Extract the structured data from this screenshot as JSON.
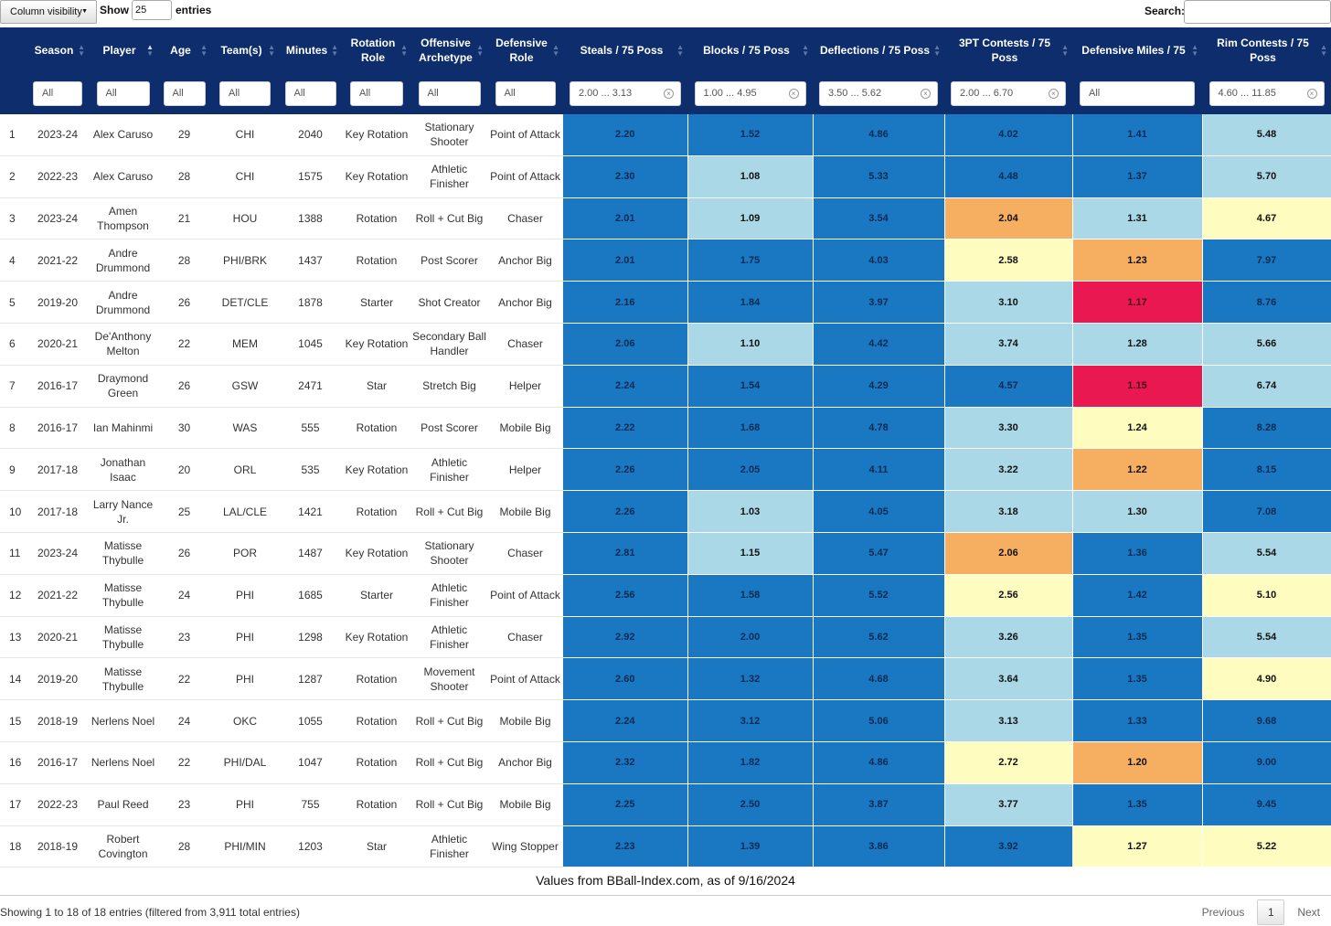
{
  "toolbar": {
    "column_visibility": "Column visibility",
    "show_label": "Show",
    "show_value": "25",
    "entries_label": "entries",
    "search_label": "Search:",
    "search_value": ""
  },
  "columns": [
    {
      "label": "",
      "sort": "none"
    },
    {
      "label": "Season",
      "sort": "both"
    },
    {
      "label": "Player",
      "sort": "asc"
    },
    {
      "label": "Age",
      "sort": "both"
    },
    {
      "label": "Team(s)",
      "sort": "both"
    },
    {
      "label": "Minutes",
      "sort": "both"
    },
    {
      "label": "Rotation Role",
      "sort": "both"
    },
    {
      "label": "Offensive Archetype",
      "sort": "both"
    },
    {
      "label": "Defensive Role",
      "sort": "both"
    },
    {
      "label": "Steals / 75 Poss",
      "sort": "both"
    },
    {
      "label": "Blocks / 75 Poss",
      "sort": "both"
    },
    {
      "label": "Deflections / 75 Poss",
      "sort": "both"
    },
    {
      "label": "3PT Contests / 75 Poss",
      "sort": "both"
    },
    {
      "label": "Defensive Miles / 75",
      "sort": "both"
    },
    {
      "label": "Rim Contests / 75 Poss",
      "sort": "both"
    }
  ],
  "filters": [
    {
      "value": "",
      "clear": false
    },
    {
      "value": "All",
      "clear": false
    },
    {
      "value": "All",
      "clear": false
    },
    {
      "value": "All",
      "clear": false
    },
    {
      "value": "All",
      "clear": false
    },
    {
      "value": "All",
      "clear": false
    },
    {
      "value": "All",
      "clear": false
    },
    {
      "value": "All",
      "clear": false
    },
    {
      "value": "All",
      "clear": false
    },
    {
      "value": "2.00 ... 3.13",
      "clear": true
    },
    {
      "value": "1.00 ... 4.95",
      "clear": true
    },
    {
      "value": "3.50 ... 5.62",
      "clear": true
    },
    {
      "value": "2.00 ... 6.70",
      "clear": true
    },
    {
      "value": "All",
      "clear": false
    },
    {
      "value": "4.60 ... 11.85",
      "clear": true
    }
  ],
  "colors": {
    "header_bg": "#0d2d6c",
    "dark_blue": "#1a78c2",
    "light_blue": "#aad8e6",
    "yellow": "#fefcbf",
    "orange": "#f6ae61",
    "red": "#e91851"
  },
  "rows": [
    {
      "n": "1",
      "season": "2023-24",
      "player": "Alex Caruso",
      "age": "29",
      "team": "CHI",
      "minutes": "2040",
      "rotation": "Key Rotation",
      "offense": "Stationary Shooter",
      "defense": "Point of Attack",
      "metrics": [
        {
          "v": "2.20",
          "c": "dark"
        },
        {
          "v": "1.52",
          "c": "dark"
        },
        {
          "v": "4.86",
          "c": "dark"
        },
        {
          "v": "4.02",
          "c": "dark"
        },
        {
          "v": "1.41",
          "c": "dark"
        },
        {
          "v": "5.48",
          "c": "light"
        }
      ]
    },
    {
      "n": "2",
      "season": "2022-23",
      "player": "Alex Caruso",
      "age": "28",
      "team": "CHI",
      "minutes": "1575",
      "rotation": "Key Rotation",
      "offense": "Athletic Finisher",
      "defense": "Point of Attack",
      "metrics": [
        {
          "v": "2.30",
          "c": "dark"
        },
        {
          "v": "1.08",
          "c": "light"
        },
        {
          "v": "5.33",
          "c": "dark"
        },
        {
          "v": "4.48",
          "c": "dark"
        },
        {
          "v": "1.37",
          "c": "dark"
        },
        {
          "v": "5.70",
          "c": "light"
        }
      ]
    },
    {
      "n": "3",
      "season": "2023-24",
      "player": "Amen Thompson",
      "age": "21",
      "team": "HOU",
      "minutes": "1388",
      "rotation": "Rotation",
      "offense": "Roll + Cut Big",
      "defense": "Chaser",
      "metrics": [
        {
          "v": "2.01",
          "c": "dark"
        },
        {
          "v": "1.09",
          "c": "light"
        },
        {
          "v": "3.54",
          "c": "dark"
        },
        {
          "v": "2.04",
          "c": "orange"
        },
        {
          "v": "1.31",
          "c": "light"
        },
        {
          "v": "4.67",
          "c": "yellow"
        }
      ]
    },
    {
      "n": "4",
      "season": "2021-22",
      "player": "Andre Drummond",
      "age": "28",
      "team": "PHI/BRK",
      "minutes": "1437",
      "rotation": "Rotation",
      "offense": "Post Scorer",
      "defense": "Anchor Big",
      "metrics": [
        {
          "v": "2.01",
          "c": "dark"
        },
        {
          "v": "1.75",
          "c": "dark"
        },
        {
          "v": "4.03",
          "c": "dark"
        },
        {
          "v": "2.58",
          "c": "yellow"
        },
        {
          "v": "1.23",
          "c": "orange"
        },
        {
          "v": "7.97",
          "c": "dark"
        }
      ]
    },
    {
      "n": "5",
      "season": "2019-20",
      "player": "Andre Drummond",
      "age": "26",
      "team": "DET/CLE",
      "minutes": "1878",
      "rotation": "Starter",
      "offense": "Shot Creator",
      "defense": "Anchor Big",
      "metrics": [
        {
          "v": "2.16",
          "c": "dark"
        },
        {
          "v": "1.84",
          "c": "dark"
        },
        {
          "v": "3.97",
          "c": "dark"
        },
        {
          "v": "3.10",
          "c": "light"
        },
        {
          "v": "1.17",
          "c": "red"
        },
        {
          "v": "8.76",
          "c": "dark"
        }
      ]
    },
    {
      "n": "6",
      "season": "2020-21",
      "player": "De'Anthony Melton",
      "age": "22",
      "team": "MEM",
      "minutes": "1045",
      "rotation": "Key Rotation",
      "offense": "Secondary Ball Handler",
      "defense": "Chaser",
      "metrics": [
        {
          "v": "2.06",
          "c": "dark"
        },
        {
          "v": "1.10",
          "c": "light"
        },
        {
          "v": "4.42",
          "c": "dark"
        },
        {
          "v": "3.74",
          "c": "light"
        },
        {
          "v": "1.28",
          "c": "light"
        },
        {
          "v": "5.66",
          "c": "light"
        }
      ]
    },
    {
      "n": "7",
      "season": "2016-17",
      "player": "Draymond Green",
      "age": "26",
      "team": "GSW",
      "minutes": "2471",
      "rotation": "Star",
      "offense": "Stretch Big",
      "defense": "Helper",
      "metrics": [
        {
          "v": "2.24",
          "c": "dark"
        },
        {
          "v": "1.54",
          "c": "dark"
        },
        {
          "v": "4.29",
          "c": "dark"
        },
        {
          "v": "4.57",
          "c": "dark"
        },
        {
          "v": "1.15",
          "c": "red"
        },
        {
          "v": "6.74",
          "c": "light"
        }
      ]
    },
    {
      "n": "8",
      "season": "2016-17",
      "player": "Ian Mahinmi",
      "age": "30",
      "team": "WAS",
      "minutes": "555",
      "rotation": "Rotation",
      "offense": "Post Scorer",
      "defense": "Mobile Big",
      "metrics": [
        {
          "v": "2.22",
          "c": "dark"
        },
        {
          "v": "1.68",
          "c": "dark"
        },
        {
          "v": "4.78",
          "c": "dark"
        },
        {
          "v": "3.30",
          "c": "light"
        },
        {
          "v": "1.24",
          "c": "yellow"
        },
        {
          "v": "8.28",
          "c": "dark"
        }
      ]
    },
    {
      "n": "9",
      "season": "2017-18",
      "player": "Jonathan Isaac",
      "age": "20",
      "team": "ORL",
      "minutes": "535",
      "rotation": "Key Rotation",
      "offense": "Athletic Finisher",
      "defense": "Helper",
      "metrics": [
        {
          "v": "2.26",
          "c": "dark"
        },
        {
          "v": "2.05",
          "c": "dark"
        },
        {
          "v": "4.11",
          "c": "dark"
        },
        {
          "v": "3.22",
          "c": "light"
        },
        {
          "v": "1.22",
          "c": "orange"
        },
        {
          "v": "8.15",
          "c": "dark"
        }
      ]
    },
    {
      "n": "10",
      "season": "2017-18",
      "player": "Larry Nance Jr.",
      "age": "25",
      "team": "LAL/CLE",
      "minutes": "1421",
      "rotation": "Rotation",
      "offense": "Roll + Cut Big",
      "defense": "Mobile Big",
      "metrics": [
        {
          "v": "2.26",
          "c": "dark"
        },
        {
          "v": "1.03",
          "c": "light"
        },
        {
          "v": "4.05",
          "c": "dark"
        },
        {
          "v": "3.18",
          "c": "light"
        },
        {
          "v": "1.30",
          "c": "light"
        },
        {
          "v": "7.08",
          "c": "dark"
        }
      ]
    },
    {
      "n": "11",
      "season": "2023-24",
      "player": "Matisse Thybulle",
      "age": "26",
      "team": "POR",
      "minutes": "1487",
      "rotation": "Key Rotation",
      "offense": "Stationary Shooter",
      "defense": "Chaser",
      "metrics": [
        {
          "v": "2.81",
          "c": "dark"
        },
        {
          "v": "1.15",
          "c": "light"
        },
        {
          "v": "5.47",
          "c": "dark"
        },
        {
          "v": "2.06",
          "c": "orange"
        },
        {
          "v": "1.36",
          "c": "dark"
        },
        {
          "v": "5.54",
          "c": "light"
        }
      ]
    },
    {
      "n": "12",
      "season": "2021-22",
      "player": "Matisse Thybulle",
      "age": "24",
      "team": "PHI",
      "minutes": "1685",
      "rotation": "Starter",
      "offense": "Athletic Finisher",
      "defense": "Point of Attack",
      "metrics": [
        {
          "v": "2.56",
          "c": "dark"
        },
        {
          "v": "1.58",
          "c": "dark"
        },
        {
          "v": "5.52",
          "c": "dark"
        },
        {
          "v": "2.56",
          "c": "yellow"
        },
        {
          "v": "1.42",
          "c": "dark"
        },
        {
          "v": "5.10",
          "c": "yellow"
        }
      ]
    },
    {
      "n": "13",
      "season": "2020-21",
      "player": "Matisse Thybulle",
      "age": "23",
      "team": "PHI",
      "minutes": "1298",
      "rotation": "Key Rotation",
      "offense": "Athletic Finisher",
      "defense": "Chaser",
      "metrics": [
        {
          "v": "2.92",
          "c": "dark"
        },
        {
          "v": "2.00",
          "c": "dark"
        },
        {
          "v": "5.62",
          "c": "dark"
        },
        {
          "v": "3.26",
          "c": "light"
        },
        {
          "v": "1.35",
          "c": "dark"
        },
        {
          "v": "5.54",
          "c": "light"
        }
      ]
    },
    {
      "n": "14",
      "season": "2019-20",
      "player": "Matisse Thybulle",
      "age": "22",
      "team": "PHI",
      "minutes": "1287",
      "rotation": "Rotation",
      "offense": "Movement Shooter",
      "defense": "Point of Attack",
      "metrics": [
        {
          "v": "2.60",
          "c": "dark"
        },
        {
          "v": "1.32",
          "c": "dark"
        },
        {
          "v": "4.68",
          "c": "dark"
        },
        {
          "v": "3.64",
          "c": "light"
        },
        {
          "v": "1.35",
          "c": "dark"
        },
        {
          "v": "4.90",
          "c": "yellow"
        }
      ]
    },
    {
      "n": "15",
      "season": "2018-19",
      "player": "Nerlens Noel",
      "age": "24",
      "team": "OKC",
      "minutes": "1055",
      "rotation": "Rotation",
      "offense": "Roll + Cut Big",
      "defense": "Mobile Big",
      "metrics": [
        {
          "v": "2.24",
          "c": "dark"
        },
        {
          "v": "3.12",
          "c": "dark"
        },
        {
          "v": "5.06",
          "c": "dark"
        },
        {
          "v": "3.13",
          "c": "light"
        },
        {
          "v": "1.33",
          "c": "dark"
        },
        {
          "v": "9.68",
          "c": "dark"
        }
      ]
    },
    {
      "n": "16",
      "season": "2016-17",
      "player": "Nerlens Noel",
      "age": "22",
      "team": "PHI/DAL",
      "minutes": "1047",
      "rotation": "Rotation",
      "offense": "Roll + Cut Big",
      "defense": "Anchor Big",
      "metrics": [
        {
          "v": "2.32",
          "c": "dark"
        },
        {
          "v": "1.82",
          "c": "dark"
        },
        {
          "v": "4.86",
          "c": "dark"
        },
        {
          "v": "2.72",
          "c": "yellow"
        },
        {
          "v": "1.20",
          "c": "orange"
        },
        {
          "v": "9.00",
          "c": "dark"
        }
      ]
    },
    {
      "n": "17",
      "season": "2022-23",
      "player": "Paul Reed",
      "age": "23",
      "team": "PHI",
      "minutes": "755",
      "rotation": "Rotation",
      "offense": "Roll + Cut Big",
      "defense": "Mobile Big",
      "metrics": [
        {
          "v": "2.25",
          "c": "dark"
        },
        {
          "v": "2.50",
          "c": "dark"
        },
        {
          "v": "3.87",
          "c": "dark"
        },
        {
          "v": "3.77",
          "c": "light"
        },
        {
          "v": "1.35",
          "c": "dark"
        },
        {
          "v": "9.45",
          "c": "dark"
        }
      ]
    },
    {
      "n": "18",
      "season": "2018-19",
      "player": "Robert Covington",
      "age": "28",
      "team": "PHI/MIN",
      "minutes": "1203",
      "rotation": "Star",
      "offense": "Athletic Finisher",
      "defense": "Wing Stopper",
      "metrics": [
        {
          "v": "2.23",
          "c": "dark"
        },
        {
          "v": "1.39",
          "c": "dark"
        },
        {
          "v": "3.86",
          "c": "dark"
        },
        {
          "v": "3.92",
          "c": "dark"
        },
        {
          "v": "1.27",
          "c": "yellow"
        },
        {
          "v": "5.22",
          "c": "yellow"
        }
      ]
    }
  ],
  "caption": "Values from BBall-Index.com, as of 9/16/2024",
  "footer": {
    "info": "Showing 1 to 18 of 18 entries (filtered from 3,911 total entries)",
    "previous": "Previous",
    "page": "1",
    "next": "Next"
  }
}
